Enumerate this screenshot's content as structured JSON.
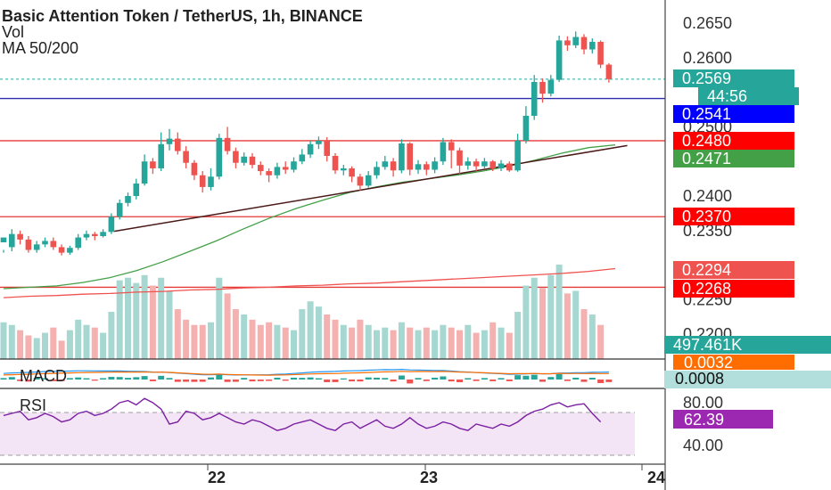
{
  "chart_data": {
    "type": "candlestick",
    "title": "Basic Attention Token / TetherUS, 1h, BINANCE",
    "indicators_legend": [
      "Vol",
      "MA 50/200"
    ],
    "price_axis": {
      "ylim": [
        0.2185,
        0.2675
      ],
      "ticks": [
        "0.2650",
        "0.2600",
        "0.2500",
        "0.2400",
        "0.2350",
        "0.2250",
        "0.2200"
      ]
    },
    "time_axis": {
      "labels": [
        "22",
        "23",
        "24"
      ]
    },
    "candles": [
      [
        0.2333,
        0.234,
        0.2322,
        0.2318
      ],
      [
        0.2326,
        0.2345,
        0.2352,
        0.232
      ],
      [
        0.2345,
        0.2337,
        0.235,
        0.233
      ],
      [
        0.2337,
        0.2322,
        0.2342,
        0.2318
      ],
      [
        0.2322,
        0.233,
        0.2335,
        0.2318
      ],
      [
        0.233,
        0.2335,
        0.234,
        0.2326
      ],
      [
        0.2335,
        0.2326,
        0.234,
        0.2322
      ],
      [
        0.2326,
        0.2318,
        0.233,
        0.2314
      ],
      [
        0.2318,
        0.2325,
        0.2328,
        0.2315
      ],
      [
        0.2325,
        0.234,
        0.2345,
        0.2322
      ],
      [
        0.234,
        0.2345,
        0.235,
        0.2336
      ],
      [
        0.2345,
        0.2342,
        0.2348,
        0.2336
      ],
      [
        0.2342,
        0.2348,
        0.2352,
        0.234
      ],
      [
        0.2348,
        0.237,
        0.2375,
        0.2345
      ],
      [
        0.237,
        0.239,
        0.2395,
        0.2366
      ],
      [
        0.239,
        0.24,
        0.2405,
        0.2385
      ],
      [
        0.24,
        0.2418,
        0.2425,
        0.2395
      ],
      [
        0.2418,
        0.245,
        0.246,
        0.2415
      ],
      [
        0.245,
        0.244,
        0.2455,
        0.2432
      ],
      [
        0.244,
        0.2475,
        0.2492,
        0.2436
      ],
      [
        0.2475,
        0.2483,
        0.2497,
        0.2466
      ],
      [
        0.2483,
        0.2465,
        0.2492,
        0.246
      ],
      [
        0.2465,
        0.2448,
        0.2472,
        0.244
      ],
      [
        0.2448,
        0.243,
        0.2452,
        0.2423
      ],
      [
        0.243,
        0.2413,
        0.2436,
        0.2405
      ],
      [
        0.2413,
        0.2428,
        0.244,
        0.2408
      ],
      [
        0.2428,
        0.2484,
        0.249,
        0.2424
      ],
      [
        0.2484,
        0.2465,
        0.25,
        0.246
      ],
      [
        0.2465,
        0.2448,
        0.247,
        0.244
      ],
      [
        0.2448,
        0.2457,
        0.2463,
        0.2444
      ],
      [
        0.2457,
        0.2445,
        0.2462,
        0.244
      ],
      [
        0.2445,
        0.2436,
        0.245,
        0.243
      ],
      [
        0.2436,
        0.243,
        0.244,
        0.242
      ],
      [
        0.243,
        0.2442,
        0.2448,
        0.2425
      ],
      [
        0.2442,
        0.2438,
        0.245,
        0.2432
      ],
      [
        0.2438,
        0.245,
        0.2456,
        0.2434
      ],
      [
        0.245,
        0.246,
        0.2468,
        0.2446
      ],
      [
        0.246,
        0.2475,
        0.248,
        0.2455
      ],
      [
        0.2475,
        0.248,
        0.2486,
        0.2468
      ],
      [
        0.248,
        0.2458,
        0.2485,
        0.245
      ],
      [
        0.2458,
        0.2437,
        0.2462,
        0.2432
      ],
      [
        0.2437,
        0.244,
        0.2445,
        0.243
      ],
      [
        0.244,
        0.2428,
        0.2443,
        0.242
      ],
      [
        0.2428,
        0.2415,
        0.2432,
        0.2408
      ],
      [
        0.2415,
        0.243,
        0.2436,
        0.2412
      ],
      [
        0.243,
        0.2442,
        0.245,
        0.2425
      ],
      [
        0.2442,
        0.245,
        0.2458,
        0.2438
      ],
      [
        0.245,
        0.2437,
        0.2455,
        0.2428
      ],
      [
        0.2437,
        0.2476,
        0.2482,
        0.2433
      ],
      [
        0.2476,
        0.2438,
        0.2478,
        0.243
      ],
      [
        0.2438,
        0.2446,
        0.2452,
        0.2432
      ],
      [
        0.2446,
        0.2438,
        0.245,
        0.243
      ],
      [
        0.2438,
        0.245,
        0.2456,
        0.2433
      ],
      [
        0.245,
        0.2478,
        0.2484,
        0.2445
      ],
      [
        0.2478,
        0.2466,
        0.2482,
        0.244
      ],
      [
        0.2466,
        0.2444,
        0.247,
        0.2432
      ],
      [
        0.2444,
        0.245,
        0.2456,
        0.2438
      ],
      [
        0.245,
        0.2443,
        0.2454,
        0.2436
      ],
      [
        0.2443,
        0.245,
        0.2455,
        0.244
      ],
      [
        0.245,
        0.244,
        0.2452,
        0.2436
      ],
      [
        0.244,
        0.2447,
        0.2452,
        0.2436
      ],
      [
        0.2447,
        0.2437,
        0.245,
        0.2435
      ],
      [
        0.2437,
        0.248,
        0.249,
        0.2435
      ],
      [
        0.248,
        0.2516,
        0.253,
        0.2476
      ],
      [
        0.2516,
        0.2565,
        0.2575,
        0.251
      ],
      [
        0.2565,
        0.2548,
        0.257,
        0.2535
      ],
      [
        0.2548,
        0.2568,
        0.2575,
        0.2544
      ],
      [
        0.2568,
        0.2625,
        0.2632,
        0.2565
      ],
      [
        0.2625,
        0.2618,
        0.2631,
        0.261
      ],
      [
        0.2618,
        0.263,
        0.2638,
        0.2614
      ],
      [
        0.263,
        0.2612,
        0.2634,
        0.2605
      ],
      [
        0.2612,
        0.2623,
        0.2628,
        0.2606
      ],
      [
        0.2623,
        0.259,
        0.2625,
        0.2585
      ],
      [
        0.259,
        0.2569,
        0.2592,
        0.2564
      ]
    ],
    "volume": [
      28,
      26,
      22,
      18,
      16,
      20,
      24,
      14,
      22,
      30,
      26,
      24,
      20,
      36,
      60,
      62,
      58,
      64,
      56,
      62,
      52,
      38,
      30,
      26,
      26,
      28,
      62,
      50,
      38,
      34,
      30,
      26,
      28,
      26,
      24,
      22,
      38,
      44,
      40,
      34,
      30,
      26,
      24,
      30,
      26,
      22,
      24,
      22,
      28,
      24,
      22,
      24,
      22,
      26,
      24,
      22,
      26,
      20,
      22,
      28,
      24,
      20,
      36,
      56,
      62,
      54,
      64,
      72,
      50,
      52,
      38,
      34,
      26
    ],
    "ma50": [
      0.2266,
      0.2268,
      0.227,
      0.2275,
      0.2282,
      0.2292,
      0.2305,
      0.232,
      0.2335,
      0.2352,
      0.2368,
      0.2382,
      0.2394,
      0.2405,
      0.2413,
      0.242,
      0.2425,
      0.243,
      0.2436,
      0.2443,
      0.2452,
      0.2462,
      0.247,
      0.2474
    ],
    "ma200": [
      0.2253,
      0.2255,
      0.2256,
      0.2258,
      0.2259,
      0.2261,
      0.2262,
      0.2264,
      0.2265,
      0.2267,
      0.2268,
      0.227,
      0.2271,
      0.2273,
      0.2274,
      0.2276,
      0.2278,
      0.228,
      0.2282,
      0.2284,
      0.2286,
      0.2288,
      0.2291,
      0.2295
    ],
    "horizontal_lines": [
      {
        "price": 0.2541,
        "color": "#2d2dae"
      },
      {
        "price": 0.248,
        "color": "#e53935"
      },
      {
        "price": 0.237,
        "color": "#e53935"
      },
      {
        "price": 0.2268,
        "color": "#e53935"
      }
    ],
    "trendline": {
      "from": [
        0.2349,
        0.18
      ],
      "to": [
        0.2473,
        0.96
      ]
    },
    "price_badges": [
      {
        "text": "0.2569",
        "color": "#26a69a"
      },
      {
        "text": "44:56",
        "color": "#26a69a"
      },
      {
        "text": "0.2541",
        "color": "#0000ff"
      },
      {
        "text": "0.2480",
        "color": "#ff0000"
      },
      {
        "text": "0.2471",
        "color": "#43a047"
      },
      {
        "text": "0.2370",
        "color": "#ff0000"
      },
      {
        "text": "0.2294",
        "color": "#ef5350"
      },
      {
        "text": "0.2268",
        "color": "#ff0000"
      },
      {
        "text": "497.461K",
        "color": "#26a69a"
      }
    ],
    "macd": {
      "label": "MACD",
      "badges": [
        {
          "text": "0.0032",
          "color": "#ff6d00"
        },
        {
          "text": "0.0008",
          "color": "#b2dfdb"
        }
      ]
    },
    "rsi": {
      "label": "RSI",
      "ticks": [
        "80.00",
        "40.00"
      ],
      "badge": {
        "text": "62.39",
        "color": "#9c27b0"
      },
      "values": [
        68,
        70,
        72,
        64,
        66,
        70,
        67,
        62,
        64,
        70,
        72,
        68,
        70,
        74,
        80,
        82,
        78,
        84,
        80,
        74,
        60,
        62,
        72,
        70,
        64,
        66,
        70,
        66,
        62,
        60,
        64,
        62,
        58,
        54,
        56,
        60,
        62,
        64,
        60,
        56,
        54,
        60,
        62,
        56,
        60,
        64,
        58,
        56,
        60,
        66,
        60,
        56,
        58,
        62,
        60,
        56,
        54,
        60,
        58,
        56,
        60,
        58,
        62,
        68,
        72,
        74,
        78,
        80,
        76,
        78,
        79,
        70,
        62
      ]
    },
    "colors": {
      "up": "#26a69a",
      "down": "#ef5350",
      "ma50": "#43a047",
      "ma200": "#ef5350",
      "trend": "#4a1a1a",
      "rsi": "#7b1fa2"
    }
  }
}
